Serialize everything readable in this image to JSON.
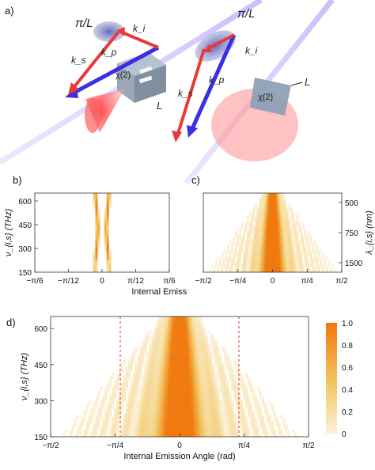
{
  "panel_labels": {
    "a": "a)",
    "b": "b)",
    "c": "c)",
    "d": "d)"
  },
  "panel_a": {
    "left": {
      "pi_over_L": "π/L",
      "k_i": "k_i",
      "k_s": "k_s",
      "k_p": "k_p",
      "chi2": "χ(2)",
      "L": "L"
    },
    "right": {
      "pi_over_L": "π/L",
      "k_i": "k_i",
      "k_s": "k_s",
      "k_p": "k_p",
      "chi2": "χ(2)",
      "L": "L"
    },
    "colors": {
      "k_s": "#e53b3b",
      "k_p": "#3a2ee6",
      "k_i": "#e53b3b",
      "crystal": "#8a9fb4",
      "ellipse": "#6b70c0",
      "cone": "#ff5555",
      "beam": "#c9b8ff"
    }
  },
  "chart_data": [
    {
      "id": "b",
      "type": "heatmap",
      "ylabel": "ν_{i,s} (THz)",
      "xlabel": "Internal Emission Angle (rad)",
      "yticks": [
        "600",
        "450",
        "300",
        "150"
      ],
      "ylim": [
        150,
        650
      ],
      "xticks": [
        "−π/6",
        "−π/12",
        "0",
        "π/12",
        "π/6"
      ],
      "xlim": [
        "−π/6",
        "π/6"
      ]
    },
    {
      "id": "c",
      "type": "heatmap",
      "ylabel": "λ_{i,s} (nm)",
      "xlabel": "",
      "yticks_right": [
        "500",
        "750",
        "1500"
      ],
      "xticks": [
        "−π/2",
        "−π/4",
        "0",
        "π/4",
        "π/2"
      ],
      "xlim": [
        "−π/2",
        "π/2"
      ]
    },
    {
      "id": "d",
      "type": "heatmap",
      "ylabel": "ν_{i,s} (THz)",
      "xlabel": "Internal Emission Angle (rad)",
      "yticks": [
        "600",
        "450",
        "300",
        "150"
      ],
      "ylim": [
        150,
        650
      ],
      "xticks": [
        "−π/2",
        "−π/4",
        "0",
        "π/4",
        "π/2"
      ],
      "xlim": [
        "−π/2",
        "π/2"
      ],
      "colorbar": {
        "ticks": [
          "1.0",
          "0.8",
          "0.6",
          "0.4",
          "0.2",
          "0"
        ],
        "range": [
          0,
          1
        ],
        "colors": [
          "#fbf3dc",
          "#f2c25a",
          "#f07a10"
        ]
      },
      "dashed_lines_color": "#e0303a"
    }
  ],
  "xlabel_c_shared": "Internal Emission Angle (rad)"
}
